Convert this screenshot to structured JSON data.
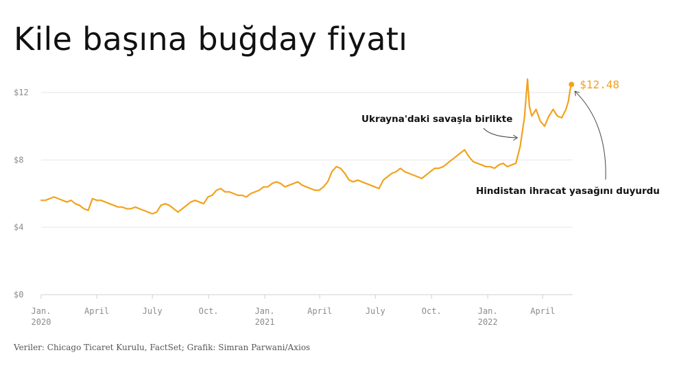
{
  "title": "Kile başına buğday fiyatı",
  "source": "Veriler: Chicago Ticaret Kurulu, FactSet; Grafik: Simran Parwani/Axios",
  "colors": {
    "line": "#f2a21c",
    "grid": "#e6e6e6",
    "axis_text": "#8a8a8a",
    "annotation_text": "#111111"
  },
  "chart_data": {
    "type": "line",
    "title": "Kile başına buğday fiyatı",
    "xlabel": "",
    "ylabel": "",
    "ylim": [
      0,
      12
    ],
    "yticks": [
      0,
      4,
      8,
      12
    ],
    "ytick_labels": [
      "$0",
      "$4",
      "$8",
      "$12"
    ],
    "xlim": [
      "2020-01-01",
      "2022-05-20"
    ],
    "xticks": [
      {
        "date": "2020-01-01",
        "line1": "Jan.",
        "line2": "2020"
      },
      {
        "date": "2020-04-01",
        "line1": "April",
        "line2": ""
      },
      {
        "date": "2020-07-01",
        "line1": "July",
        "line2": ""
      },
      {
        "date": "2020-10-01",
        "line1": "Oct.",
        "line2": ""
      },
      {
        "date": "2021-01-01",
        "line1": "Jan.",
        "line2": "2021"
      },
      {
        "date": "2021-04-01",
        "line1": "April",
        "line2": ""
      },
      {
        "date": "2021-07-01",
        "line1": "July",
        "line2": ""
      },
      {
        "date": "2021-10-01",
        "line1": "Oct.",
        "line2": ""
      },
      {
        "date": "2022-01-01",
        "line1": "Jan.",
        "line2": "2022"
      },
      {
        "date": "2022-04-01",
        "line1": "April",
        "line2": ""
      }
    ],
    "grid": "horizontal",
    "legend": "none",
    "series": [
      {
        "color": "#f2a21c",
        "points": [
          [
            "2020-01-01",
            5.6
          ],
          [
            "2020-01-08",
            5.6
          ],
          [
            "2020-01-15",
            5.7
          ],
          [
            "2020-01-22",
            5.8
          ],
          [
            "2020-01-29",
            5.7
          ],
          [
            "2020-02-05",
            5.6
          ],
          [
            "2020-02-12",
            5.5
          ],
          [
            "2020-02-19",
            5.6
          ],
          [
            "2020-02-26",
            5.4
          ],
          [
            "2020-03-04",
            5.3
          ],
          [
            "2020-03-11",
            5.1
          ],
          [
            "2020-03-18",
            5.0
          ],
          [
            "2020-03-25",
            5.7
          ],
          [
            "2020-04-01",
            5.6
          ],
          [
            "2020-04-08",
            5.6
          ],
          [
            "2020-04-15",
            5.5
          ],
          [
            "2020-04-22",
            5.4
          ],
          [
            "2020-04-29",
            5.3
          ],
          [
            "2020-05-06",
            5.2
          ],
          [
            "2020-05-13",
            5.2
          ],
          [
            "2020-05-20",
            5.1
          ],
          [
            "2020-05-27",
            5.1
          ],
          [
            "2020-06-03",
            5.2
          ],
          [
            "2020-06-10",
            5.1
          ],
          [
            "2020-06-17",
            5.0
          ],
          [
            "2020-06-24",
            4.9
          ],
          [
            "2020-07-01",
            4.8
          ],
          [
            "2020-07-08",
            4.9
          ],
          [
            "2020-07-15",
            5.3
          ],
          [
            "2020-07-22",
            5.4
          ],
          [
            "2020-07-29",
            5.3
          ],
          [
            "2020-08-05",
            5.1
          ],
          [
            "2020-08-12",
            4.9
          ],
          [
            "2020-08-19",
            5.1
          ],
          [
            "2020-08-26",
            5.3
          ],
          [
            "2020-09-02",
            5.5
          ],
          [
            "2020-09-09",
            5.6
          ],
          [
            "2020-09-16",
            5.5
          ],
          [
            "2020-09-23",
            5.4
          ],
          [
            "2020-09-30",
            5.8
          ],
          [
            "2020-10-07",
            5.9
          ],
          [
            "2020-10-14",
            6.2
          ],
          [
            "2020-10-21",
            6.3
          ],
          [
            "2020-10-28",
            6.1
          ],
          [
            "2020-11-04",
            6.1
          ],
          [
            "2020-11-11",
            6.0
          ],
          [
            "2020-11-18",
            5.9
          ],
          [
            "2020-11-25",
            5.9
          ],
          [
            "2020-12-02",
            5.8
          ],
          [
            "2020-12-09",
            6.0
          ],
          [
            "2020-12-16",
            6.1
          ],
          [
            "2020-12-23",
            6.2
          ],
          [
            "2020-12-30",
            6.4
          ],
          [
            "2021-01-06",
            6.4
          ],
          [
            "2021-01-13",
            6.6
          ],
          [
            "2021-01-20",
            6.7
          ],
          [
            "2021-01-27",
            6.6
          ],
          [
            "2021-02-03",
            6.4
          ],
          [
            "2021-02-10",
            6.5
          ],
          [
            "2021-02-17",
            6.6
          ],
          [
            "2021-02-24",
            6.7
          ],
          [
            "2021-03-03",
            6.5
          ],
          [
            "2021-03-10",
            6.4
          ],
          [
            "2021-03-17",
            6.3
          ],
          [
            "2021-03-24",
            6.2
          ],
          [
            "2021-03-31",
            6.2
          ],
          [
            "2021-04-07",
            6.4
          ],
          [
            "2021-04-14",
            6.7
          ],
          [
            "2021-04-21",
            7.3
          ],
          [
            "2021-04-28",
            7.6
          ],
          [
            "2021-05-05",
            7.5
          ],
          [
            "2021-05-12",
            7.2
          ],
          [
            "2021-05-19",
            6.8
          ],
          [
            "2021-05-26",
            6.7
          ],
          [
            "2021-06-02",
            6.8
          ],
          [
            "2021-06-09",
            6.7
          ],
          [
            "2021-06-16",
            6.6
          ],
          [
            "2021-06-23",
            6.5
          ],
          [
            "2021-06-30",
            6.4
          ],
          [
            "2021-07-07",
            6.3
          ],
          [
            "2021-07-14",
            6.8
          ],
          [
            "2021-07-21",
            7.0
          ],
          [
            "2021-07-28",
            7.2
          ],
          [
            "2021-08-04",
            7.3
          ],
          [
            "2021-08-11",
            7.5
          ],
          [
            "2021-08-18",
            7.3
          ],
          [
            "2021-08-25",
            7.2
          ],
          [
            "2021-09-01",
            7.1
          ],
          [
            "2021-09-08",
            7.0
          ],
          [
            "2021-09-15",
            6.9
          ],
          [
            "2021-09-22",
            7.1
          ],
          [
            "2021-09-29",
            7.3
          ],
          [
            "2021-10-06",
            7.5
          ],
          [
            "2021-10-13",
            7.5
          ],
          [
            "2021-10-20",
            7.6
          ],
          [
            "2021-10-27",
            7.8
          ],
          [
            "2021-11-03",
            8.0
          ],
          [
            "2021-11-10",
            8.2
          ],
          [
            "2021-11-17",
            8.4
          ],
          [
            "2021-11-24",
            8.6
          ],
          [
            "2021-12-01",
            8.2
          ],
          [
            "2021-12-08",
            7.9
          ],
          [
            "2021-12-15",
            7.8
          ],
          [
            "2021-12-22",
            7.7
          ],
          [
            "2021-12-29",
            7.6
          ],
          [
            "2022-01-05",
            7.6
          ],
          [
            "2022-01-12",
            7.5
          ],
          [
            "2022-01-19",
            7.7
          ],
          [
            "2022-01-26",
            7.8
          ],
          [
            "2022-02-02",
            7.6
          ],
          [
            "2022-02-09",
            7.7
          ],
          [
            "2022-02-16",
            7.8
          ],
          [
            "2022-02-23",
            8.8
          ],
          [
            "2022-03-02",
            10.5
          ],
          [
            "2022-03-07",
            12.8
          ],
          [
            "2022-03-10",
            11.2
          ],
          [
            "2022-03-14",
            10.6
          ],
          [
            "2022-03-21",
            11.0
          ],
          [
            "2022-03-28",
            10.3
          ],
          [
            "2022-04-04",
            10.0
          ],
          [
            "2022-04-11",
            10.6
          ],
          [
            "2022-04-18",
            11.0
          ],
          [
            "2022-04-25",
            10.6
          ],
          [
            "2022-05-02",
            10.5
          ],
          [
            "2022-05-09",
            11.0
          ],
          [
            "2022-05-13",
            11.5
          ],
          [
            "2022-05-16",
            12.2
          ],
          [
            "2022-05-18",
            12.48
          ]
        ]
      }
    ],
    "end_label": "$12.48",
    "annotations": [
      {
        "text": "Ukrayna'daki savaşla birlikte",
        "date": "2022-02-24"
      },
      {
        "text": "Hindistan ihracat yasağını duyurdu",
        "date": "2022-05-18"
      }
    ]
  }
}
